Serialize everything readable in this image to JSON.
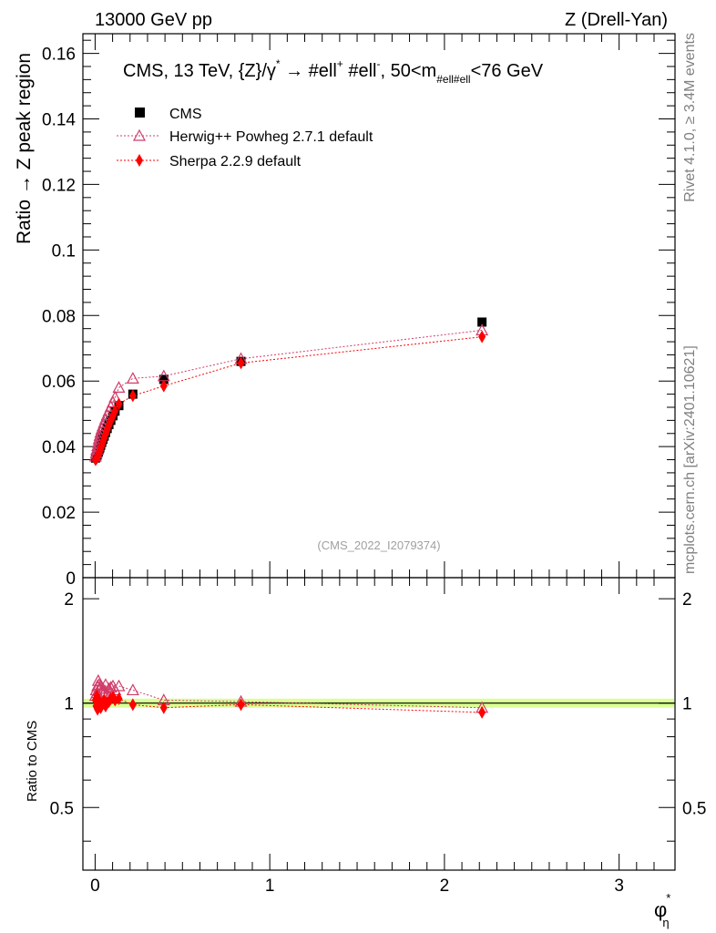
{
  "header": {
    "left": "13000 GeV pp",
    "right": "Z (Drell-Yan)"
  },
  "side_labels": {
    "rivet": "Rivet 4.1.0, ≥ 3.4M events",
    "mcplots": "mcplots.cern.ch [arXiv:2401.10621]"
  },
  "chart_data": {
    "type": "scatter",
    "title": "CMS, 13 TeV, {Z}/γ* → #ell⁺ #ell⁻, 50<m_{#ell#ell}<76 GeV",
    "title_main": "CMS, 13 TeV, {Z}/γ",
    "title_sup1": "*",
    "title_arrow": " →  #ell",
    "title_sup2": "+",
    "title_mid": " #ell",
    "title_sup3": "-",
    "title_after": ", 50<m",
    "title_sub": "#ell#ell",
    "title_end": "<76 GeV",
    "ylabel": "Ratio → Z peak region",
    "ratio_ylabel": "Ratio to CMS",
    "xlabel": "φ",
    "xlabel_sup": "*",
    "xlabel_sub": "η",
    "watermark": "(CMS_2022_I2079374)",
    "xlim": [
      -0.07,
      3.32
    ],
    "ylim": [
      0,
      0.166
    ],
    "ratio_ylim": [
      0.33,
      2.3
    ],
    "x_ticks": [
      "0",
      "1",
      "2",
      "3"
    ],
    "y_ticks": [
      "0",
      "0.02",
      "0.04",
      "0.06",
      "0.08",
      "0.1",
      "0.12",
      "0.14",
      "0.16"
    ],
    "ratio_ticks": [
      "0.5",
      "1",
      "2"
    ],
    "x": [
      0.002,
      0.006,
      0.01,
      0.014,
      0.018,
      0.022,
      0.027,
      0.032,
      0.038,
      0.045,
      0.052,
      0.06,
      0.069,
      0.079,
      0.09,
      0.102,
      0.114,
      0.136,
      0.216,
      0.393,
      0.835,
      2.215
    ],
    "series": [
      {
        "name": "CMS",
        "color": "#000000",
        "marker": "square",
        "values": [
          0.0365,
          0.0368,
          0.0372,
          0.0377,
          0.0383,
          0.0389,
          0.0396,
          0.0404,
          0.0413,
          0.0422,
          0.0432,
          0.0443,
          0.0455,
          0.0467,
          0.048,
          0.0494,
          0.0508,
          0.0525,
          0.056,
          0.0605,
          0.066,
          0.078
        ]
      },
      {
        "name": "Herwig++ Powheg 2.7.1 default",
        "color": "#d13c6a",
        "marker": "open-triangle",
        "values": [
          0.037,
          0.038,
          0.0391,
          0.0402,
          0.0412,
          0.0423,
          0.0433,
          0.0443,
          0.0453,
          0.0463,
          0.0473,
          0.0484,
          0.0496,
          0.0508,
          0.0521,
          0.0535,
          0.055,
          0.058,
          0.0608,
          0.0615,
          0.0668,
          0.0755
        ]
      },
      {
        "name": "Sherpa 2.2.9 default",
        "color": "#ff0000",
        "marker": "diamond",
        "values": [
          0.036,
          0.0362,
          0.0365,
          0.037,
          0.0375,
          0.038,
          0.0387,
          0.0395,
          0.0404,
          0.0415,
          0.0426,
          0.0438,
          0.0451,
          0.0465,
          0.0479,
          0.0494,
          0.0508,
          0.053,
          0.0555,
          0.0585,
          0.0655,
          0.0735
        ]
      }
    ],
    "ratio_series": [
      {
        "name": "Herwig++ Powheg 2.7.1 default",
        "color": "#d13c6a",
        "marker": "open-triangle",
        "values": [
          1.05,
          1.09,
          1.07,
          1.12,
          1.16,
          1.13,
          1.1,
          1.12,
          1.08,
          1.1,
          1.07,
          1.13,
          1.06,
          1.1,
          1.11,
          1.12,
          1.09,
          1.12,
          1.09,
          1.02,
          1.01,
          0.97
        ]
      },
      {
        "name": "Sherpa 2.2.9 default",
        "color": "#ff0000",
        "marker": "diamond",
        "values": [
          1.02,
          0.98,
          1.05,
          0.96,
          1.0,
          0.99,
          1.01,
          0.97,
          0.99,
          1.0,
          1.02,
          0.98,
          1.0,
          1.01,
          1.03,
          1.04,
          1.02,
          1.03,
          0.99,
          0.97,
          0.99,
          0.94
        ]
      }
    ]
  }
}
